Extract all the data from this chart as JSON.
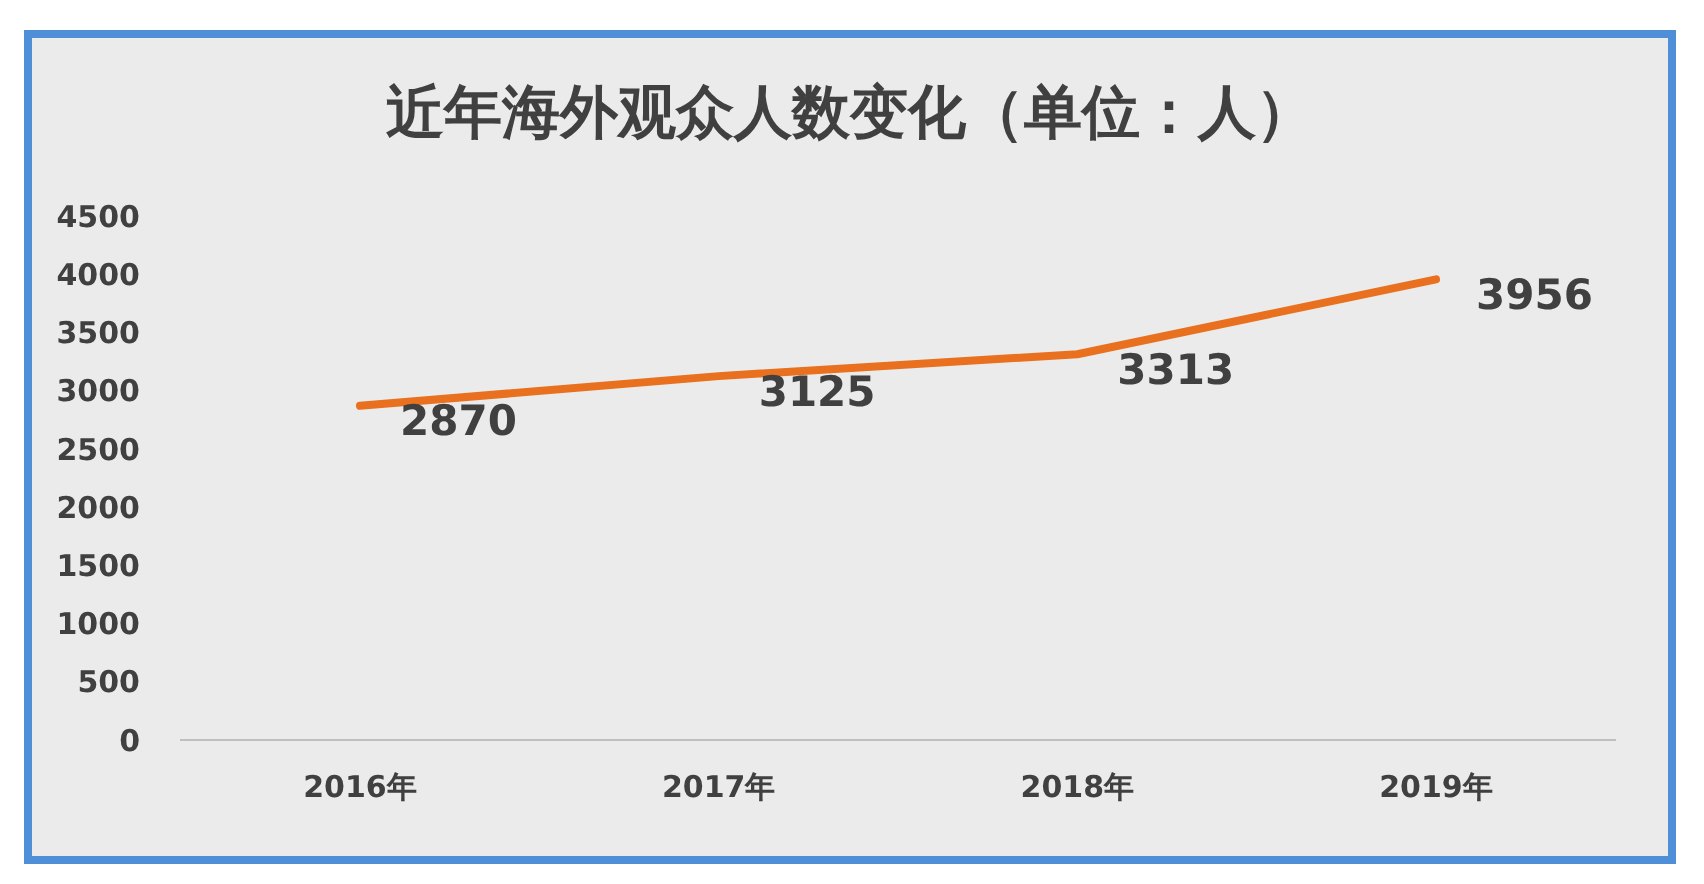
{
  "chart_data": {
    "type": "line",
    "title": "近年海外观众人数变化（单位：人）",
    "categories": [
      "2016年",
      "2017年",
      "2018年",
      "2019年"
    ],
    "values": [
      2870,
      3125,
      3313,
      3956
    ],
    "color": "#e8701f",
    "ylim": [
      0,
      4500
    ],
    "yticks": [
      0,
      500,
      1000,
      1500,
      2000,
      2500,
      3000,
      3500,
      4000,
      4500
    ],
    "grid": false,
    "legend": false,
    "marker": "none",
    "data_labels": true
  }
}
